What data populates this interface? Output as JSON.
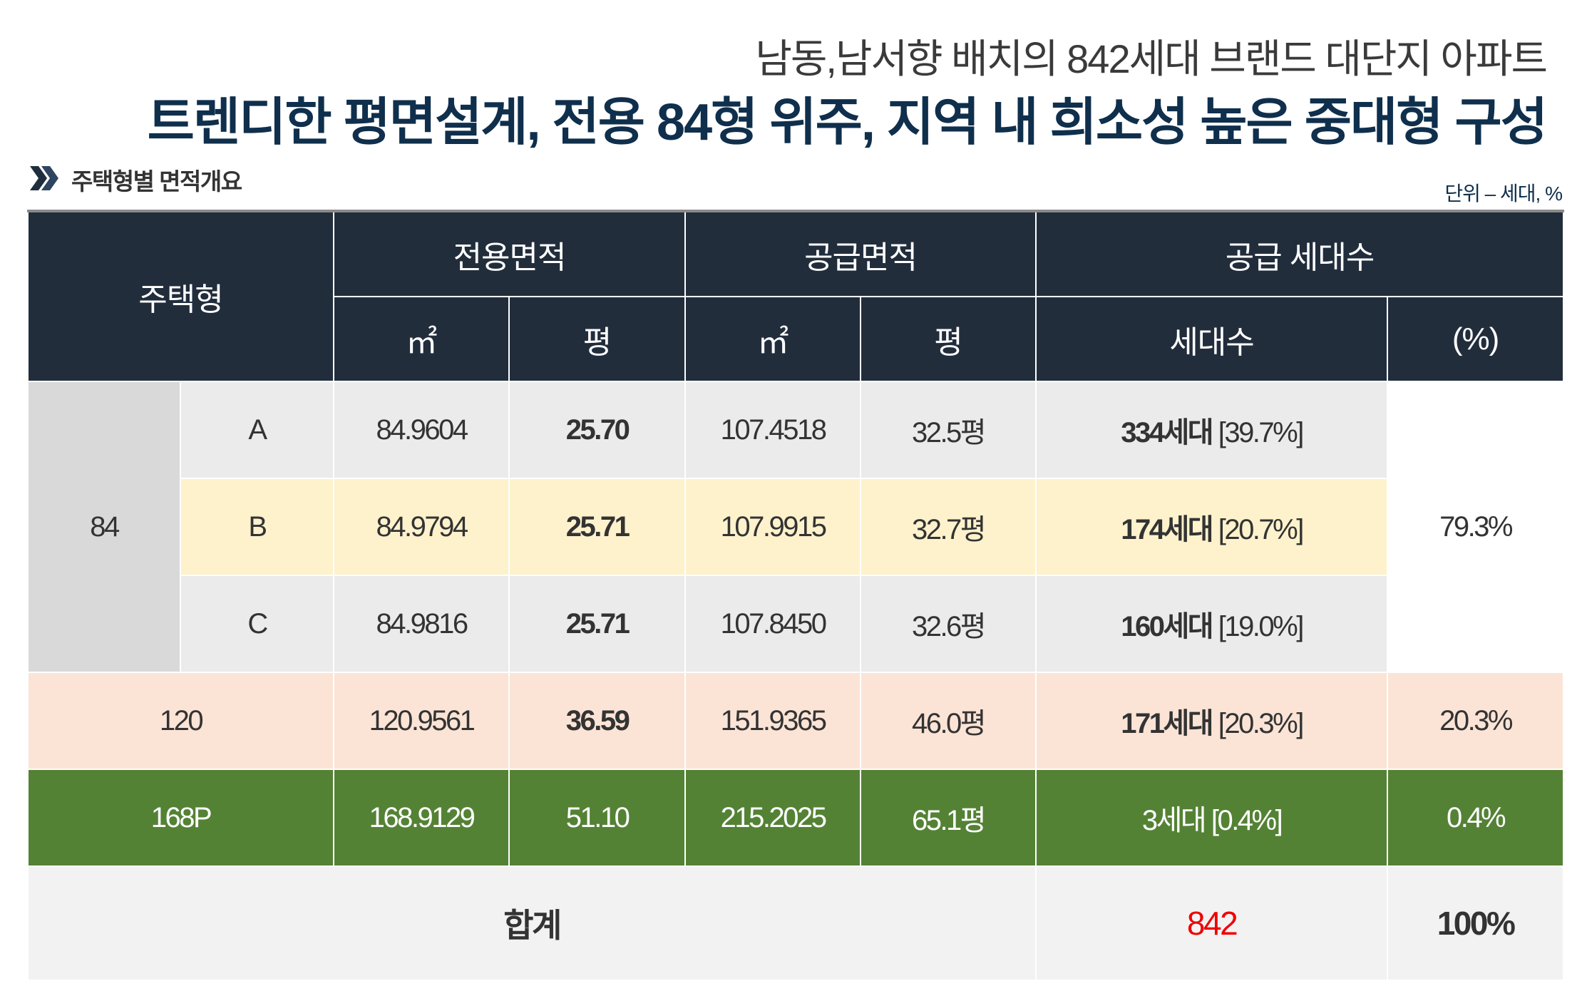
{
  "header": {
    "subtitle": "남동,남서향 배치의 842세대 브랜드 대단지 아파트",
    "title": "트렌디한 평면설계, 전용 84형 위주, 지역 내 희소성 높은 중대형 구성"
  },
  "section": {
    "icon": "double-chevron-right-icon",
    "label": "주택형별 면적개요",
    "unit": "단위 – 세대, %"
  },
  "table": {
    "headers": {
      "type": "주택형",
      "exclusive": "전용면적",
      "supply": "공급면적",
      "households": "공급 세대수",
      "sqm": "㎡",
      "pyeong": "평",
      "count": "세대수",
      "percent": "(%)"
    },
    "group84": {
      "label": "84",
      "percent": "79.3%"
    },
    "rows": [
      {
        "sub": "A",
        "ex_sqm": "84.9604",
        "ex_py": "25.70",
        "sup_sqm": "107.4518",
        "sup_py": "32.5평",
        "count": "334세대",
        "share": "[39.7%]"
      },
      {
        "sub": "B",
        "ex_sqm": "84.9794",
        "ex_py": "25.71",
        "sup_sqm": "107.9915",
        "sup_py": "32.7평",
        "count": "174세대",
        "share": "[20.7%]"
      },
      {
        "sub": "C",
        "ex_sqm": "84.9816",
        "ex_py": "25.71",
        "sup_sqm": "107.8450",
        "sup_py": "32.6평",
        "count": "160세대",
        "share": "[19.0%]"
      },
      {
        "type": "120",
        "ex_sqm": "120.9561",
        "ex_py": "36.59",
        "sup_sqm": "151.9365",
        "sup_py": "46.0평",
        "count": "171세대",
        "share": "[20.3%]",
        "percent": "20.3%"
      },
      {
        "type": "168P",
        "ex_sqm": "168.9129",
        "ex_py": "51.10",
        "sup_sqm": "215.2025",
        "sup_py": "65.1평",
        "count": "3세대",
        "share": "[0.4%]",
        "percent": "0.4%"
      }
    ],
    "total": {
      "label": "합계",
      "count": "842",
      "percent": "100%"
    }
  },
  "colors": {
    "header_bg": "#222d3c",
    "row_b": "#fdf2cc",
    "row_120": "#fbe4d6",
    "row_168p": "#548235",
    "total_count": "#f00000"
  }
}
